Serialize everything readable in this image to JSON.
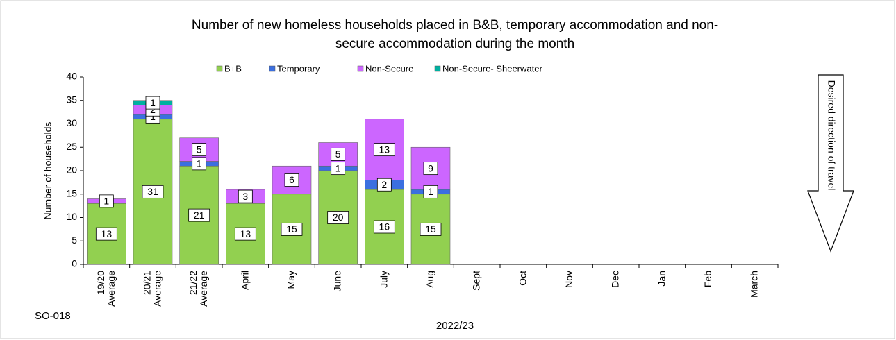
{
  "chart_data": {
    "type": "bar",
    "stacked": true,
    "title": [
      "Number of new homeless households placed in B&B, temporary accommodation and non-",
      "secure accommodation during the month"
    ],
    "ylabel": "Number of households",
    "xlabel": "2022/23",
    "code": "SO-018",
    "annotation": "Desired direction of travel",
    "categories": [
      "19/20 Average",
      "20/21 Average",
      "21/22 Average",
      "April",
      "May",
      "June",
      "July",
      "Aug",
      "Sept",
      "Oct",
      "Nov",
      "Dec",
      "Jan",
      "Feb",
      "March"
    ],
    "series": [
      {
        "name": "B+B",
        "color": "#92d050",
        "values": [
          13,
          31,
          21,
          13,
          15,
          20,
          16,
          15,
          null,
          null,
          null,
          null,
          null,
          null,
          null
        ]
      },
      {
        "name": "Temporary",
        "color": "#3b6fe0",
        "values": [
          null,
          1,
          1,
          null,
          null,
          1,
          2,
          1,
          null,
          null,
          null,
          null,
          null,
          null,
          null
        ]
      },
      {
        "name": "Non-Secure",
        "color": "#cc66ff",
        "values": [
          1,
          2,
          5,
          3,
          6,
          5,
          13,
          9,
          null,
          null,
          null,
          null,
          null,
          null,
          null
        ]
      },
      {
        "name": "Non-Secure- Sheerwater",
        "color": "#00b0a0",
        "values": [
          null,
          1,
          null,
          null,
          null,
          null,
          null,
          null,
          null,
          null,
          null,
          null,
          null,
          null,
          null
        ]
      }
    ],
    "ylim": [
      0,
      40
    ],
    "yticks": [
      0,
      5,
      10,
      15,
      20,
      25,
      30,
      35,
      40
    ],
    "grid": false,
    "legend": "top"
  }
}
